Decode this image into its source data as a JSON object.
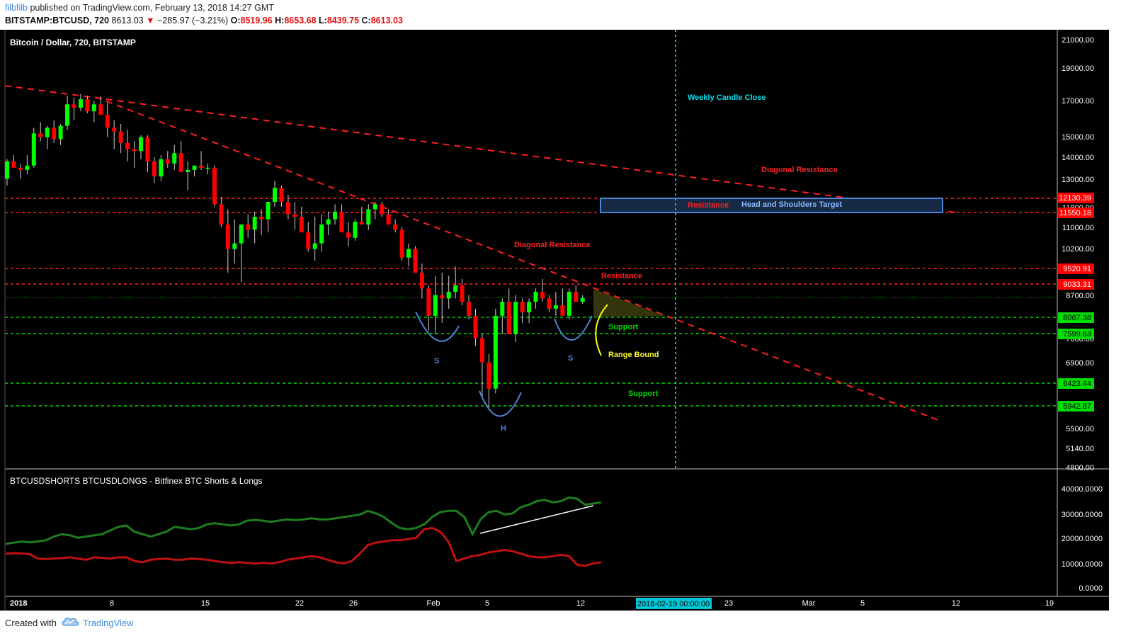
{
  "header": {
    "user": "filbfilb",
    "published": "published on TradingView.com, February 13, 2018 14:27 GMT",
    "symbol": "BITSTAMP:BTCUSD, 720",
    "last": "8613.03",
    "arrow": "▼",
    "change": "−285.97 (−3.21%)",
    "open_label": "O:",
    "open": "8519.96",
    "high_label": "H:",
    "high": "8653.68",
    "low_label": "L:",
    "low": "8439.75",
    "close_label": "C:",
    "close": "8613.03"
  },
  "chart_title": "Bitcoin / Dollar, 720, BITSTAMP",
  "indicator_title": "BTCUSDSHORTS BTCUSDLONGS - Bitfinex BTC Shorts & Longs",
  "footer": {
    "created_with": "Created with",
    "brand": "TradingView"
  },
  "colors": {
    "up": "#00ff00",
    "down": "#ff0000",
    "background": "#000000",
    "longs": "#1e7d1e",
    "shorts": "#cc1111",
    "support": "#00cc00",
    "resistance": "#ff2020",
    "annotation_blue": "#4f86d9",
    "cursor": "#00c8d8"
  },
  "chart_data": {
    "type": "candlestick",
    "price_scale": "log",
    "price_ticks": [
      "21000.00",
      "19000.00",
      "17000.00",
      "15000.00",
      "14000.00",
      "13000.00",
      "11800.00",
      "11000.00",
      "10200.00",
      "8700.00",
      "7600.00",
      "6900.00",
      "5500.00",
      "5140.00",
      "4800.00"
    ],
    "x_labels": [
      "2018",
      "8",
      "15",
      "22",
      "26",
      "Feb",
      "5",
      "12",
      "23",
      "Mar",
      "5",
      "12",
      "19"
    ],
    "cursor_label": "2018-02-19 00:00:00",
    "horizontal_levels": [
      {
        "price": "12130.39",
        "kind": "resistance"
      },
      {
        "price": "11550.18",
        "kind": "resistance"
      },
      {
        "price": "9520.91",
        "kind": "resistance"
      },
      {
        "price": "9033.31",
        "kind": "resistance"
      },
      {
        "price": "8067.38",
        "kind": "support"
      },
      {
        "price": "7599.63",
        "kind": "support"
      },
      {
        "price": "6423.44",
        "kind": "support"
      },
      {
        "price": "5942.87",
        "kind": "support"
      }
    ],
    "annotations": [
      "Weekly Candle Close",
      "Diagonal Resistance",
      "Resistance",
      "Head and Shoulders Target",
      "Diagonal Resistance",
      "Resistance",
      "Support",
      "Range Bound",
      "Support",
      "S",
      "S",
      "H"
    ],
    "candles_ohlc": [
      [
        13000,
        13900,
        12700,
        13800
      ],
      [
        13800,
        14100,
        13500,
        13500
      ],
      [
        13500,
        13700,
        13000,
        13400
      ],
      [
        13400,
        14100,
        13200,
        13600
      ],
      [
        13600,
        15500,
        13500,
        15200
      ],
      [
        15200,
        15800,
        14800,
        15000
      ],
      [
        15000,
        15600,
        14400,
        15500
      ],
      [
        15500,
        15900,
        14700,
        14900
      ],
      [
        14900,
        15700,
        14600,
        15600
      ],
      [
        15600,
        17300,
        15400,
        16800
      ],
      [
        16800,
        17200,
        15900,
        16600
      ],
      [
        16600,
        17400,
        16400,
        17100
      ],
      [
        17100,
        17300,
        16300,
        16400
      ],
      [
        16400,
        17000,
        15800,
        16800
      ],
      [
        16800,
        17300,
        16200,
        16200
      ],
      [
        16200,
        16900,
        15000,
        15500
      ],
      [
        15500,
        15900,
        14400,
        15300
      ],
      [
        15300,
        15700,
        14200,
        14700
      ],
      [
        14700,
        15400,
        13800,
        14400
      ],
      [
        14400,
        14800,
        13500,
        14300
      ],
      [
        14300,
        15100,
        13900,
        15000
      ],
      [
        15000,
        15100,
        13300,
        13800
      ],
      [
        13800,
        14000,
        12800,
        13100
      ],
      [
        13100,
        14100,
        12900,
        13900
      ],
      [
        13900,
        14300,
        13500,
        13700
      ],
      [
        13700,
        14600,
        13400,
        14200
      ],
      [
        14200,
        14800,
        13300,
        13300
      ],
      [
        13300,
        13800,
        12500,
        13400
      ],
      [
        13400,
        13600,
        13100,
        13600
      ],
      [
        13600,
        14300,
        13400,
        13500
      ],
      [
        13500,
        13700,
        13200,
        13500
      ],
      [
        13500,
        13600,
        11800,
        11900
      ],
      [
        11900,
        12200,
        11000,
        11100
      ],
      [
        11100,
        11700,
        9400,
        10200
      ],
      [
        10200,
        11300,
        9700,
        10400
      ],
      [
        10400,
        11000,
        9100,
        11100
      ],
      [
        11100,
        11500,
        10600,
        10900
      ],
      [
        10900,
        11600,
        10400,
        11400
      ],
      [
        11400,
        11700,
        10700,
        11300
      ],
      [
        11300,
        12000,
        10800,
        12000
      ],
      [
        12000,
        12900,
        11800,
        12600
      ],
      [
        12600,
        12700,
        11800,
        12000
      ],
      [
        12000,
        12300,
        11300,
        11500
      ],
      [
        11500,
        12000,
        10900,
        11400
      ],
      [
        11400,
        11800,
        10900,
        10800
      ],
      [
        10800,
        11200,
        10100,
        10200
      ],
      [
        10200,
        11400,
        9800,
        10400
      ],
      [
        10400,
        11500,
        10100,
        11100
      ],
      [
        11100,
        11600,
        10700,
        11300
      ],
      [
        11300,
        11900,
        11100,
        11600
      ],
      [
        11600,
        11900,
        10900,
        10800
      ],
      [
        10800,
        11200,
        10300,
        10600
      ],
      [
        10600,
        11300,
        10500,
        11200
      ],
      [
        11200,
        11800,
        11100,
        11100
      ],
      [
        11100,
        11900,
        10900,
        11700
      ],
      [
        11700,
        12000,
        11300,
        11900
      ],
      [
        11900,
        12000,
        11400,
        11500
      ],
      [
        11500,
        11700,
        11100,
        11100
      ],
      [
        11100,
        11300,
        10800,
        10900
      ],
      [
        10900,
        11000,
        9800,
        9900
      ],
      [
        9900,
        10400,
        9600,
        10200
      ],
      [
        10200,
        10300,
        9400,
        9400
      ],
      [
        9400,
        9700,
        8600,
        8900
      ],
      [
        8900,
        9000,
        7700,
        8100
      ],
      [
        8100,
        9300,
        7600,
        8700
      ],
      [
        8700,
        9400,
        7900,
        8600
      ],
      [
        8600,
        9300,
        8300,
        8800
      ],
      [
        8800,
        9600,
        8600,
        9000
      ],
      [
        9000,
        9200,
        8400,
        8500
      ],
      [
        8500,
        8700,
        8000,
        8100
      ],
      [
        8100,
        8300,
        7300,
        7500
      ],
      [
        7500,
        7600,
        6100,
        6900
      ],
      [
        6900,
        7100,
        5900,
        6300
      ],
      [
        6300,
        8300,
        6200,
        8100
      ],
      [
        8100,
        8600,
        7600,
        8500
      ],
      [
        8500,
        8900,
        8200,
        7600
      ],
      [
        7600,
        8700,
        7400,
        8500
      ],
      [
        8500,
        8600,
        7900,
        8200
      ],
      [
        8200,
        8600,
        7900,
        8500
      ],
      [
        8500,
        8900,
        8300,
        8800
      ],
      [
        8800,
        9200,
        8500,
        8600
      ],
      [
        8600,
        8700,
        8200,
        8300
      ],
      [
        8300,
        8800,
        8100,
        8400
      ],
      [
        8400,
        8900,
        8200,
        8100
      ],
      [
        8100,
        8900,
        8000,
        8800
      ],
      [
        8800,
        9000,
        8500,
        8500
      ],
      [
        8500,
        8700,
        8440,
        8613
      ]
    ],
    "indicator": {
      "y_ticks": [
        "40000.0000",
        "30000.0000",
        "20000.0000",
        "10000.0000",
        "0.0000"
      ],
      "series": [
        {
          "name": "BTCUSDLONGS",
          "values": [
            18000,
            18500,
            19000,
            18600,
            19000,
            19500,
            21000,
            22000,
            21500,
            20500,
            21000,
            21500,
            22000,
            23500,
            25000,
            25500,
            23000,
            22000,
            21000,
            22000,
            23000,
            25000,
            24500,
            24000,
            24500,
            26000,
            26500,
            26000,
            25500,
            26000,
            27500,
            27800,
            27500,
            27000,
            27600,
            28000,
            27700,
            28000,
            28500,
            28000,
            28000,
            28500,
            29000,
            29500,
            30000,
            31500,
            30500,
            29000,
            26500,
            24500,
            24000,
            24500,
            26000,
            29000,
            31000,
            31500,
            31500,
            29000,
            22000,
            28000,
            31000,
            31500,
            30000,
            30500,
            33000,
            34000,
            35500,
            36000,
            35000,
            35500,
            37000,
            36500,
            34000,
            34500,
            35000
          ]
        },
        {
          "name": "BTCUSDSHORTS",
          "values": [
            14000,
            14200,
            14100,
            13800,
            12000,
            11800,
            12000,
            12200,
            12500,
            12000,
            11500,
            12500,
            12300,
            12000,
            12500,
            12500,
            11000,
            10500,
            11500,
            11800,
            12000,
            11500,
            11500,
            12000,
            11800,
            11500,
            11000,
            10500,
            10200,
            10500,
            10200,
            10000,
            10200,
            10000,
            10500,
            11500,
            12000,
            12500,
            13000,
            12500,
            11500,
            10500,
            10000,
            11000,
            14000,
            17500,
            18500,
            19000,
            19500,
            19500,
            20000,
            20500,
            24000,
            24500,
            23000,
            19000,
            11000,
            12000,
            13000,
            13500,
            14500,
            15000,
            15500,
            15000,
            14000,
            13000,
            12500,
            12500,
            13000,
            13500,
            13000,
            9500,
            9000,
            10000,
            10500
          ]
        }
      ],
      "trendline_label": ""
    }
  }
}
